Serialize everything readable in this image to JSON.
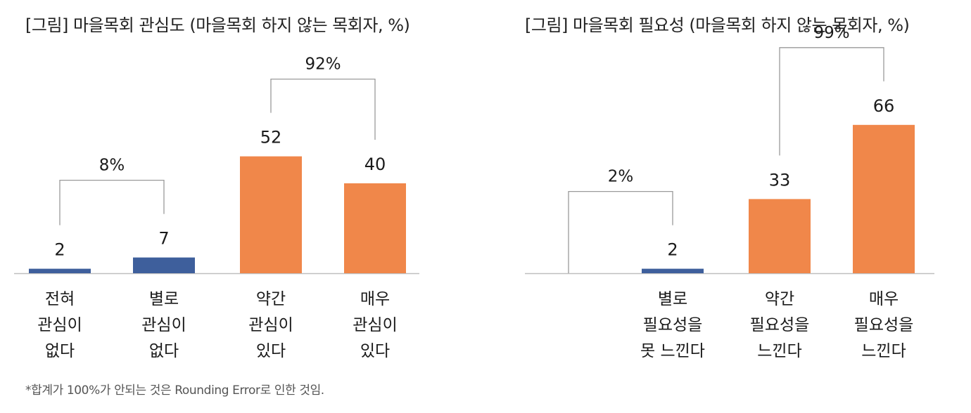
{
  "footnote": "*합계가 100%가 안되는 것은 Rounding Error로 인한 것임.",
  "chart_data": [
    {
      "type": "bar",
      "title": "[그림] 마을목회 관심도 (마을목회 하지 않는 목회자, %)",
      "categories": [
        [
          "전혀",
          "관심이",
          "없다"
        ],
        [
          "별로",
          "관심이",
          "없다"
        ],
        [
          "약간",
          "관심이",
          "있다"
        ],
        [
          "매우",
          "관심이",
          "있다"
        ]
      ],
      "values": [
        2,
        7,
        52,
        40
      ],
      "colors": [
        "#3e5f9c",
        "#3e5f9c",
        "#f0874a",
        "#f0874a"
      ],
      "ylim": [
        0,
        70
      ],
      "groups": [
        {
          "label": "8%",
          "from": 0,
          "to": 1
        },
        {
          "label": "92%",
          "from": 2,
          "to": 3
        }
      ]
    },
    {
      "type": "bar",
      "title": "[그림] 마을목회 필요성 (마을목회 하지 않는 목회자, %)",
      "categories": [
        [],
        [
          "별로",
          "필요성을",
          "못 느낀다"
        ],
        [
          "약간",
          "필요성을",
          "느낀다"
        ],
        [
          "매우",
          "필요성을",
          "느낀다"
        ]
      ],
      "values": [
        0,
        2,
        33,
        66
      ],
      "colors": [
        "#3e5f9c",
        "#3e5f9c",
        "#f0874a",
        "#f0874a"
      ],
      "ylim": [
        0,
        70
      ],
      "groups": [
        {
          "label": "2%",
          "from": 0,
          "to": 1
        },
        {
          "label": "99%",
          "from": 2,
          "to": 3
        }
      ]
    }
  ]
}
